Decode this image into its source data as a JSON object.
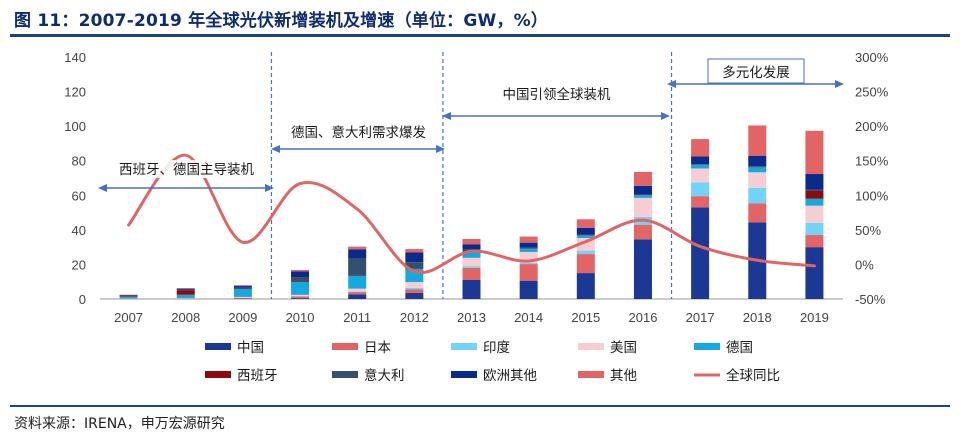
{
  "title": "图 11：2007-2019 年全球光伏新增装机及增速（单位：GW，%）",
  "source": "资料来源：IRENA，申万宏源研究",
  "chart_data": {
    "type": "bar",
    "stacked": true,
    "categories": [
      "2007",
      "2008",
      "2009",
      "2010",
      "2011",
      "2012",
      "2013",
      "2014",
      "2015",
      "2016",
      "2017",
      "2018",
      "2019"
    ],
    "ylim": [
      0,
      140
    ],
    "y_ticks": [
      0,
      20,
      40,
      60,
      80,
      100,
      120,
      140
    ],
    "y2lim": [
      -50,
      300
    ],
    "y2_ticks": [
      "-50%",
      "0%",
      "50%",
      "100%",
      "150%",
      "200%",
      "250%",
      "300%"
    ],
    "grid": false,
    "legend_position": "bottom",
    "series": [
      {
        "name": "中国",
        "color": "#1b3994",
        "values": [
          0.02,
          0.04,
          0.2,
          0.5,
          2.7,
          3.5,
          11,
          10.6,
          15,
          34.5,
          53,
          44.3,
          30
        ]
      },
      {
        "name": "日本",
        "color": "#e26464",
        "values": [
          0.2,
          0.2,
          0.5,
          1,
          1.3,
          2,
          7,
          9.6,
          11,
          8.5,
          6.5,
          11,
          7
        ]
      },
      {
        "name": "印度",
        "color": "#71d3f5",
        "values": [
          0,
          0,
          0,
          0.1,
          0.3,
          1,
          1,
          0.8,
          2,
          4.5,
          8,
          9,
          7
        ]
      },
      {
        "name": "美国",
        "color": "#f6cdd2",
        "values": [
          0.15,
          0.3,
          0.5,
          0.8,
          1.7,
          3.3,
          4.8,
          6.2,
          7.3,
          11,
          8,
          9,
          10
        ]
      },
      {
        "name": "德国",
        "color": "#14a9e0",
        "values": [
          1.1,
          1.9,
          4.5,
          7.4,
          7.5,
          7.6,
          3.3,
          1.9,
          1.4,
          1.5,
          2,
          2.9,
          4
        ]
      },
      {
        "name": "西班牙",
        "color": "#8f0a0a",
        "values": [
          0.5,
          2.7,
          0.1,
          0.4,
          0.4,
          0.3,
          0.2,
          0.1,
          0.1,
          0.1,
          0.1,
          0.2,
          4.5
        ]
      },
      {
        "name": "意大利",
        "color": "#34506e",
        "values": [
          0.1,
          0.3,
          0.7,
          2.3,
          9.4,
          3.6,
          1.4,
          0.4,
          0.3,
          0.4,
          0.4,
          0.5,
          0.8
        ]
      },
      {
        "name": "欧洲其他",
        "color": "#0a2a8c",
        "values": [
          0.3,
          0.6,
          1,
          3.5,
          5.5,
          5.6,
          3,
          3,
          4,
          5,
          4.5,
          6,
          9
        ]
      },
      {
        "name": "其他",
        "color": "#e26464",
        "values": [
          0.1,
          0.2,
          0.5,
          0.8,
          1.5,
          2,
          3,
          3.5,
          5,
          8,
          10,
          17.5,
          25
        ]
      }
    ],
    "line": {
      "name": "全球同比",
      "color": "#e26464",
      "axis": "right",
      "values_pct": [
        57,
        158,
        32,
        117,
        80,
        -10,
        19,
        5,
        33,
        64,
        26,
        6,
        -2
      ]
    },
    "annotations": [
      {
        "text": "西班牙、德国主导装机",
        "from": "2007",
        "to": "2009"
      },
      {
        "text": "德国、意大利需求爆发",
        "from": "2010",
        "to": "2012"
      },
      {
        "text": "中国引领全球装机",
        "from": "2013",
        "to": "2016"
      },
      {
        "text": "多元化发展",
        "from": "2017",
        "to": "2019"
      }
    ]
  }
}
